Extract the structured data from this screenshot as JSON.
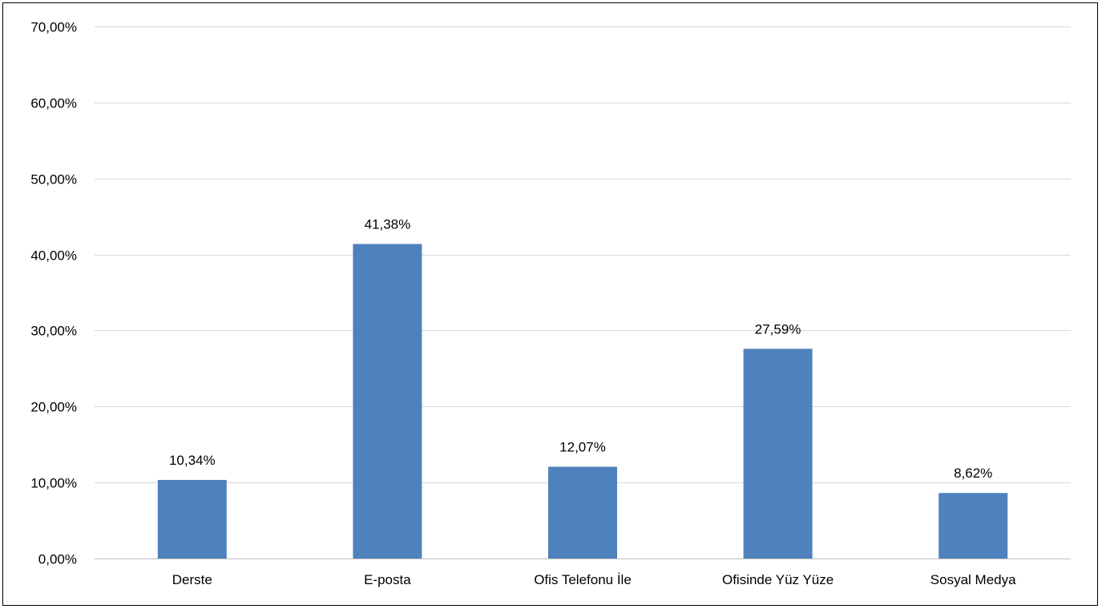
{
  "chart_data": {
    "type": "bar",
    "title": "",
    "xlabel": "",
    "ylabel": "",
    "categories": [
      "Derste",
      "E-posta",
      "Ofis Telefonu İle",
      "Ofisinde Yüz Yüze",
      "Sosyal Medya"
    ],
    "values": [
      10.34,
      41.38,
      12.07,
      27.59,
      8.62
    ],
    "value_labels": [
      "10,34%",
      "41,38%",
      "12,07%",
      "27,59%",
      "8,62%"
    ],
    "ylim": [
      0,
      70
    ],
    "yticks": [
      0,
      10,
      20,
      30,
      40,
      50,
      60,
      70
    ],
    "ytick_labels": [
      "0,00%",
      "10,00%",
      "20,00%",
      "30,00%",
      "40,00%",
      "50,00%",
      "60,00%",
      "70,00%"
    ],
    "grid": true,
    "legend": "none",
    "colors": {
      "bar": "#4f81bd",
      "grid": "#d9d9d9",
      "axis": "#bfbfbf",
      "border": "#000000"
    }
  }
}
